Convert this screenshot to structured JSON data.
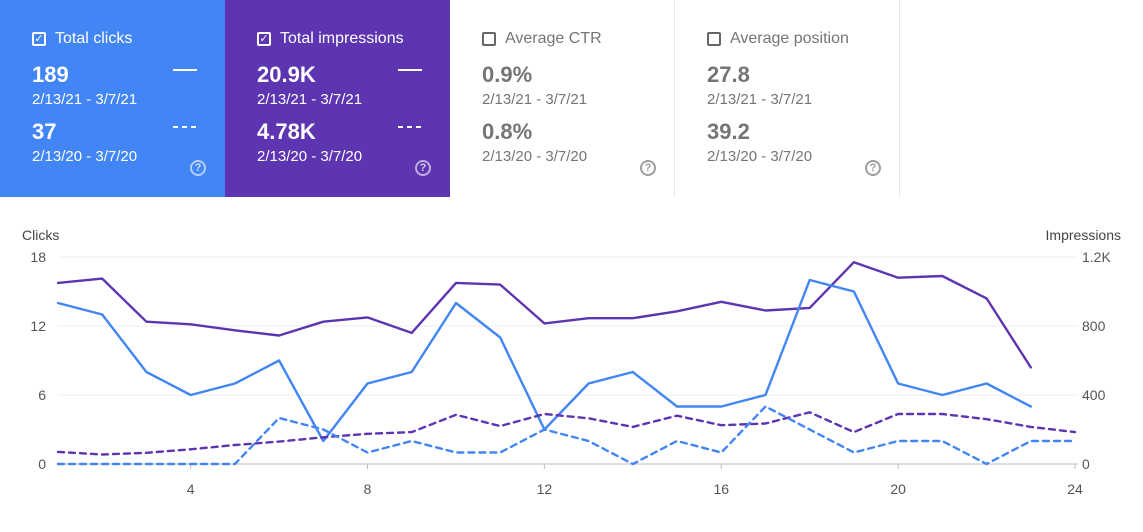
{
  "cards": [
    {
      "title": "Total clicks",
      "checked": true,
      "checkmark": "✓",
      "value1": "189",
      "date1": "2/13/21 - 3/7/21",
      "value2": "37",
      "date2": "2/13/20 - 3/7/20",
      "help": "?",
      "color": "#4285f4"
    },
    {
      "title": "Total impressions",
      "checked": true,
      "checkmark": "✓",
      "value1": "20.9K",
      "date1": "2/13/21 - 3/7/21",
      "value2": "4.78K",
      "date2": "2/13/20 - 3/7/20",
      "help": "?",
      "color": "#5e35b1"
    },
    {
      "title": "Average CTR",
      "checked": false,
      "checkmark": "",
      "value1": "0.9%",
      "date1": "2/13/21 - 3/7/21",
      "value2": "0.8%",
      "date2": "2/13/20 - 3/7/20",
      "help": "?",
      "color": "#ffffff"
    },
    {
      "title": "Average position",
      "checked": false,
      "checkmark": "",
      "value1": "27.8",
      "date1": "2/13/21 - 3/7/21",
      "value2": "39.2",
      "date2": "2/13/20 - 3/7/20",
      "help": "?",
      "color": "#ffffff"
    }
  ],
  "chart_data": {
    "type": "line",
    "ylabel_left": "Clicks",
    "ylabel_right": "Impressions",
    "x_ticks": [
      4,
      8,
      12,
      16,
      20,
      24
    ],
    "y_left_ticks": [
      "0",
      "6",
      "12",
      "18"
    ],
    "y_right_ticks": [
      "0",
      "400",
      "800",
      "1.2K"
    ],
    "ylim_left": [
      0,
      18
    ],
    "ylim_right": [
      0,
      1200
    ],
    "xlim": [
      1,
      24
    ],
    "grid": true,
    "series": [
      {
        "axis": "right",
        "style": "solid",
        "color": "#5e35b1",
        "x": [
          1,
          2,
          3,
          4,
          5,
          6,
          7,
          8,
          9,
          10,
          11,
          12,
          13,
          14,
          15,
          16,
          17,
          18,
          19,
          20,
          21,
          22,
          23
        ],
        "values": [
          1050,
          1075,
          825,
          810,
          775,
          745,
          825,
          850,
          760,
          1050,
          1040,
          815,
          845,
          845,
          885,
          940,
          890,
          905,
          1170,
          1080,
          1090,
          960,
          560
        ]
      },
      {
        "axis": "left",
        "style": "solid",
        "color": "#4285f4",
        "x": [
          1,
          2,
          3,
          4,
          5,
          6,
          7,
          8,
          9,
          10,
          11,
          12,
          13,
          14,
          15,
          16,
          17,
          18,
          19,
          20,
          21,
          22,
          23
        ],
        "values": [
          14,
          13,
          8,
          6,
          7,
          9,
          2,
          7,
          8,
          14,
          11,
          3,
          7,
          8,
          5,
          5,
          6,
          16,
          15,
          7,
          6,
          7,
          5
        ]
      },
      {
        "axis": "right",
        "style": "dashed",
        "color": "#5e35b1",
        "x": [
          1,
          2,
          3,
          4,
          5,
          6,
          7,
          8,
          9,
          10,
          11,
          12,
          13,
          14,
          15,
          16,
          17,
          18,
          19,
          20,
          21,
          22,
          23,
          24
        ],
        "values": [
          70,
          55,
          65,
          85,
          110,
          130,
          155,
          175,
          185,
          285,
          220,
          290,
          265,
          215,
          280,
          225,
          235,
          300,
          185,
          290,
          290,
          260,
          215,
          185
        ]
      },
      {
        "axis": "left",
        "style": "dashed",
        "color": "#4285f4",
        "x": [
          1,
          2,
          3,
          4,
          5,
          6,
          7,
          8,
          9,
          10,
          11,
          12,
          13,
          14,
          15,
          16,
          17,
          18,
          19,
          20,
          21,
          22,
          23,
          24
        ],
        "values": [
          0,
          0,
          0,
          0,
          0,
          4,
          3,
          1,
          2,
          1,
          1,
          3,
          2,
          0,
          2,
          1,
          5,
          3,
          1,
          2,
          2,
          0,
          2,
          2
        ]
      }
    ]
  }
}
